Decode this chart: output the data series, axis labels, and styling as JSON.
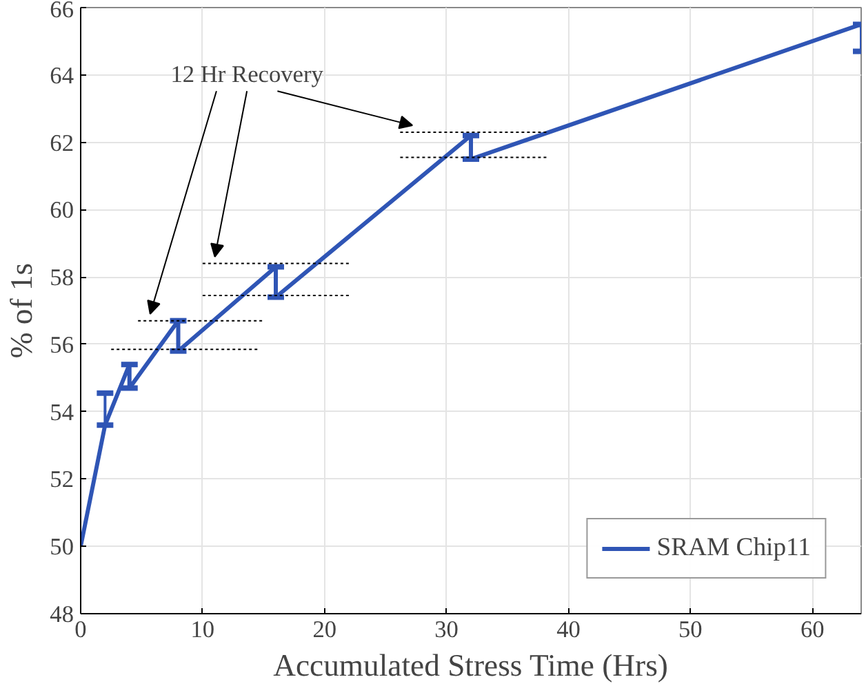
{
  "chart_data": {
    "type": "line",
    "xlabel": "Accumulated Stress Time (Hrs)",
    "ylabel": "% of 1s",
    "xlim": [
      0,
      64
    ],
    "ylim": [
      48,
      66
    ],
    "xticks": [
      0,
      10,
      20,
      30,
      40,
      50,
      60
    ],
    "yticks": [
      48,
      50,
      52,
      54,
      56,
      58,
      60,
      62,
      64,
      66
    ],
    "grid": true,
    "legend": "bottom right",
    "marker": "none",
    "annotations": [
      "12 Hr Recovery"
    ],
    "series": [
      {
        "name": "SRAM Chip11",
        "color": "#2f55b5",
        "line_style": "solid",
        "x": [
          0,
          2,
          4,
          4,
          8,
          8,
          16,
          16,
          32,
          32,
          64
        ],
        "values": [
          50,
          53.6,
          55.4,
          54.7,
          56.7,
          55.8,
          58.3,
          57.4,
          62.2,
          61.5,
          65.5
        ],
        "errors": [
          null,
          [
            53.6,
            54.55
          ],
          [
            54.7,
            55.4
          ],
          null,
          [
            55.8,
            56.7
          ],
          null,
          [
            57.4,
            58.3
          ],
          null,
          [
            61.5,
            62.2
          ],
          null,
          [
            64.7,
            65.5
          ]
        ]
      },
      {
        "color": "#000000",
        "line_style": "dotted",
        "x": [
          4.7,
          15
        ],
        "values": [
          56.7,
          56.7
        ]
      },
      {
        "color": "#000000",
        "line_style": "dotted",
        "x": [
          2.5,
          14.5
        ],
        "values": [
          55.85,
          55.85
        ]
      },
      {
        "color": "#000000",
        "line_style": "dotted",
        "x": [
          10,
          22.2
        ],
        "values": [
          58.4,
          58.4
        ]
      },
      {
        "color": "#000000",
        "line_style": "dotted",
        "x": [
          10,
          22.2
        ],
        "values": [
          57.45,
          57.45
        ]
      },
      {
        "color": "#000000",
        "line_style": "dotted",
        "x": [
          26.2,
          38.3
        ],
        "values": [
          62.3,
          62.3
        ]
      },
      {
        "color": "#000000",
        "line_style": "dotted",
        "x": [
          26.2,
          38.3
        ],
        "values": [
          61.55,
          61.55
        ]
      }
    ]
  }
}
